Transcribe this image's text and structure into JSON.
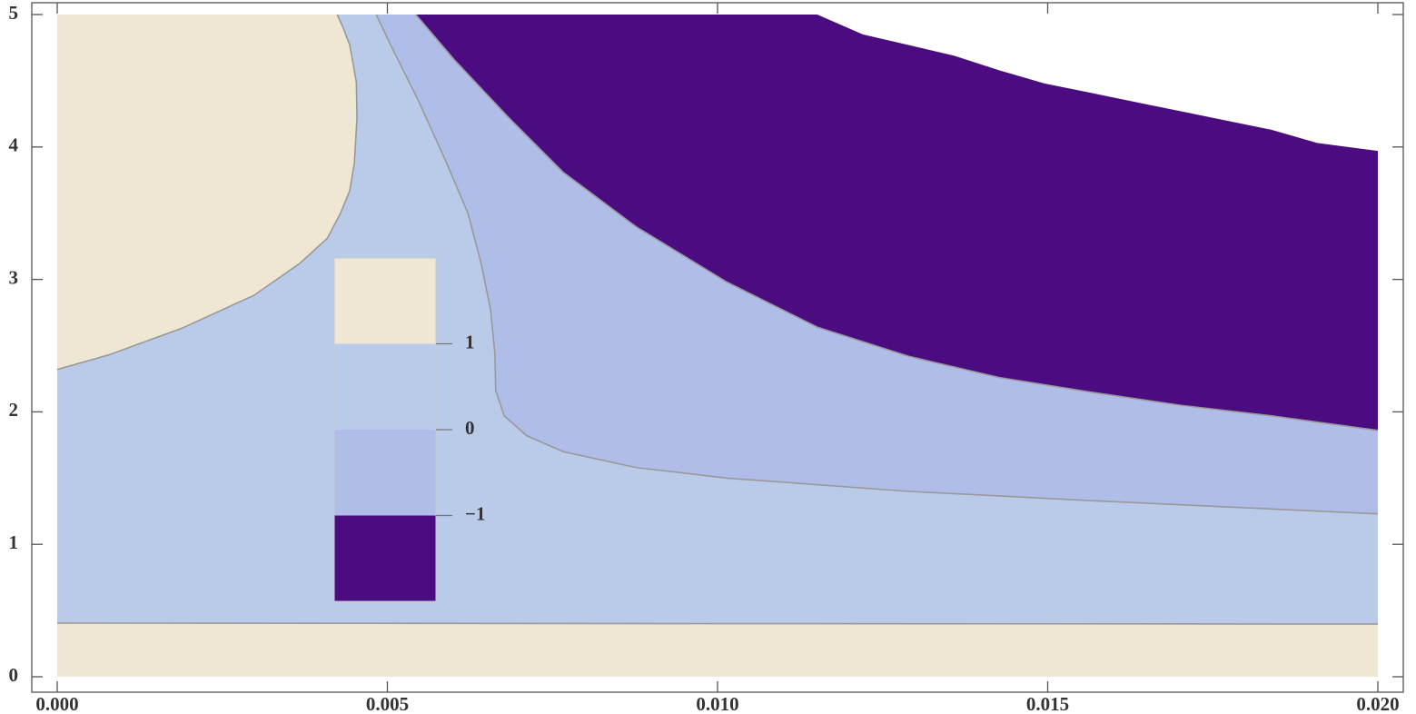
{
  "chart_data": {
    "type": "contour",
    "xlim": [
      0,
      0.02
    ],
    "xticks": [
      {
        "value": 0,
        "label": "0.000"
      },
      {
        "value": 0.005,
        "label": "0.005"
      },
      {
        "value": 0.01,
        "label": "0.010"
      },
      {
        "value": 0.015,
        "label": "0.015"
      },
      {
        "value": 0.02,
        "label": "0.020"
      }
    ],
    "ylim": [
      0,
      5
    ],
    "yticks": [
      0,
      1,
      2,
      3,
      4,
      5
    ],
    "colorbar": {
      "colors": [
        "#f0e6d4",
        "#b9cbe8",
        "#b1bde9",
        "#4b0c82"
      ],
      "ticks": [
        1,
        0,
        {
          "value": -1,
          "label": "−1"
        }
      ]
    },
    "contours": [
      {
        "level": 1,
        "x": [
          0,
          0.00078,
          0.00188,
          0.00298,
          0.00367,
          0.00409,
          0.00429,
          0.00443,
          0.0045,
          0.00454,
          0.00453,
          0.00443,
          0.00433,
          0.00424
        ],
        "y": [
          2.32,
          2.43,
          2.63,
          2.88,
          3.12,
          3.31,
          3.5,
          3.67,
          3.88,
          4.22,
          4.49,
          4.77,
          4.9,
          5
        ]
      },
      {
        "level": 1,
        "x": [
          0,
          0.01,
          0.02
        ],
        "y": [
          0.405,
          0.401,
          0.398
        ]
      },
      {
        "level": 0,
        "x": [
          0.00483,
          0.00505,
          0.00546,
          0.00587,
          0.00622,
          0.00642,
          0.00656,
          0.00663,
          0.00664,
          0.00677,
          0.00711,
          0.00766,
          0.00876,
          0.01014,
          0.01289,
          0.01564,
          0.02
        ],
        "y": [
          5,
          4.77,
          4.36,
          3.91,
          3.5,
          3.12,
          2.78,
          2.43,
          2.16,
          1.97,
          1.82,
          1.7,
          1.58,
          1.5,
          1.4,
          1.33,
          1.23
        ]
      },
      {
        "level": -1,
        "x": [
          0.00543,
          0.00601,
          0.00684,
          0.00766,
          0.00876,
          0.01014,
          0.01151,
          0.01289,
          0.01426,
          0.01564,
          0.01701,
          0.01839,
          0.02
        ],
        "y": [
          5,
          4.66,
          4.22,
          3.81,
          3.4,
          2.98,
          2.64,
          2.42,
          2.26,
          2.15,
          2.05,
          1.97,
          1.86
        ]
      }
    ],
    "domain_boundary": {
      "x": [
        0.01151,
        0.0122,
        0.01289,
        0.01358,
        0.01426,
        0.01495,
        0.01564,
        0.01701,
        0.01839,
        0.01908,
        0.02
      ],
      "y": [
        5,
        4.85,
        4.77,
        4.69,
        4.58,
        4.48,
        4.41,
        4.27,
        4.13,
        4.03,
        3.97
      ]
    }
  }
}
